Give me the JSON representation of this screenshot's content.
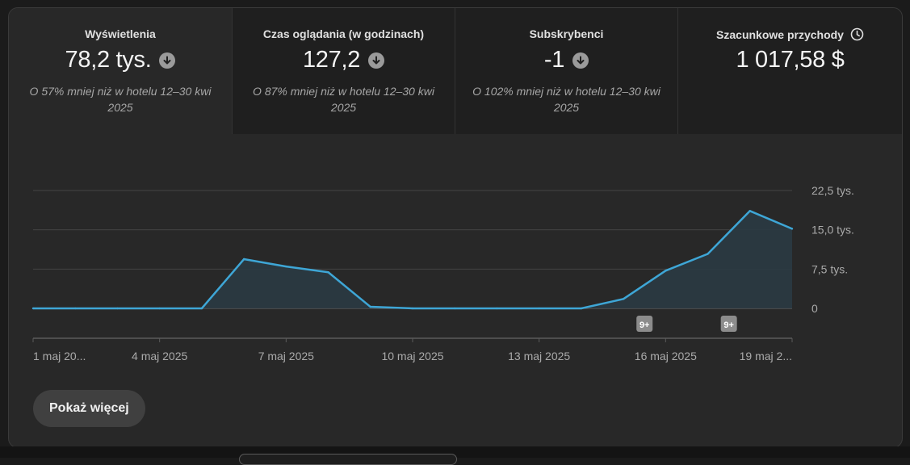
{
  "metrics": [
    {
      "title": "Wyświetlenia",
      "value": "78,2 tys.",
      "icon": "arrow-down-icon",
      "compare": "O 57% mniej niż w hotelu 12–30 kwi 2025"
    },
    {
      "title": "Czas oglądania (w godzinach)",
      "value": "127,2",
      "icon": "arrow-down-icon",
      "compare": "O 87% mniej niż w hotelu 12–30 kwi 2025"
    },
    {
      "title": "Subskrybenci",
      "value": "-1",
      "icon": "arrow-down-icon",
      "compare": "O 102% mniej niż w hotelu 12–30 kwi 2025"
    },
    {
      "title": "Szacunkowe przychody",
      "value": "1 017,58 $",
      "icon": "clock-icon",
      "compare": ""
    }
  ],
  "show_more_label": "Pokaż więcej",
  "colors": {
    "line": "#3ea6d6",
    "area": "#2a3a42",
    "gridline": "#444444",
    "text_muted": "#aaaaaa"
  },
  "chart_data": {
    "type": "area",
    "x": [
      "1 maj",
      "2 maj",
      "3 maj",
      "4 maj",
      "5 maj",
      "6 maj",
      "7 maj",
      "8 maj",
      "9 maj",
      "10 maj",
      "11 maj",
      "12 maj",
      "13 maj",
      "14 maj",
      "15 maj",
      "16 maj",
      "17 maj",
      "18 maj",
      "19 maj"
    ],
    "series": [
      {
        "values": [
          0,
          0,
          0,
          0,
          0,
          9400,
          8000,
          6900,
          300,
          0,
          0,
          0,
          0,
          0,
          1800,
          7200,
          10400,
          18600,
          15200
        ]
      }
    ],
    "ylim": [
      0,
      22500
    ],
    "yticks": [
      0,
      7500,
      15000,
      22500
    ],
    "ytick_labels": [
      "0",
      "7,5 tys.",
      "15,0 tys.",
      "22,5 tys."
    ],
    "xtick_labels": [
      "1 maj 20...",
      "4 maj 2025",
      "7 maj 2025",
      "10 maj 2025",
      "13 maj 2025",
      "16 maj 2025",
      "19 maj 2..."
    ],
    "xtick_index": [
      0,
      3,
      6,
      9,
      12,
      15,
      18
    ],
    "annotations": [
      {
        "index": 14.5,
        "label": "9+"
      },
      {
        "index": 16.5,
        "label": "9+"
      }
    ],
    "xlabel": "",
    "ylabel": "",
    "title": "",
    "grid": true
  }
}
